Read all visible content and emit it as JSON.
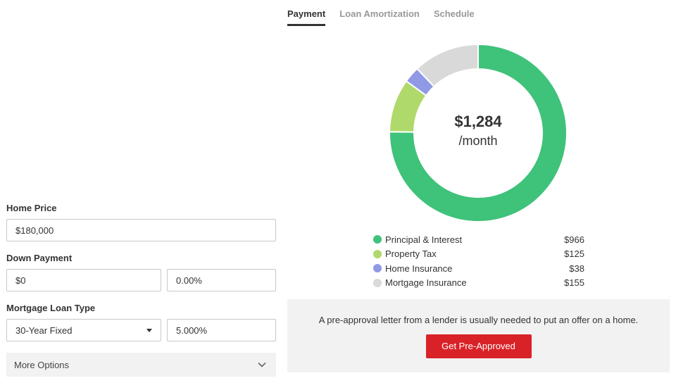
{
  "form": {
    "home_price": {
      "label": "Home Price",
      "value": "$180,000"
    },
    "down_payment": {
      "label": "Down Payment",
      "amount": "$0",
      "percent": "0.00%"
    },
    "loan_type": {
      "label": "Mortgage Loan Type",
      "selected": "30-Year Fixed",
      "rate": "5.000%"
    },
    "more_options": "More Options"
  },
  "tabs": [
    {
      "label": "Payment",
      "active": true
    },
    {
      "label": "Loan Amortization",
      "active": false
    },
    {
      "label": "Schedule",
      "active": false
    }
  ],
  "summary": {
    "amount": "$1,284",
    "period": "/month"
  },
  "breakdown": [
    {
      "label": "Principal & Interest",
      "value": "$966",
      "amount": 966,
      "color": "#3fc27a"
    },
    {
      "label": "Property Tax",
      "value": "$125",
      "amount": 125,
      "color": "#b0d96b"
    },
    {
      "label": "Home Insurance",
      "value": "$38",
      "amount": 38,
      "color": "#9099e6"
    },
    {
      "label": "Mortgage Insurance",
      "value": "$155",
      "amount": 155,
      "color": "#d9d9d9"
    }
  ],
  "preapproval": {
    "text": "A pre-approval letter from a lender is usually needed to put an offer on a home.",
    "button": "Get Pre-Approved"
  }
}
